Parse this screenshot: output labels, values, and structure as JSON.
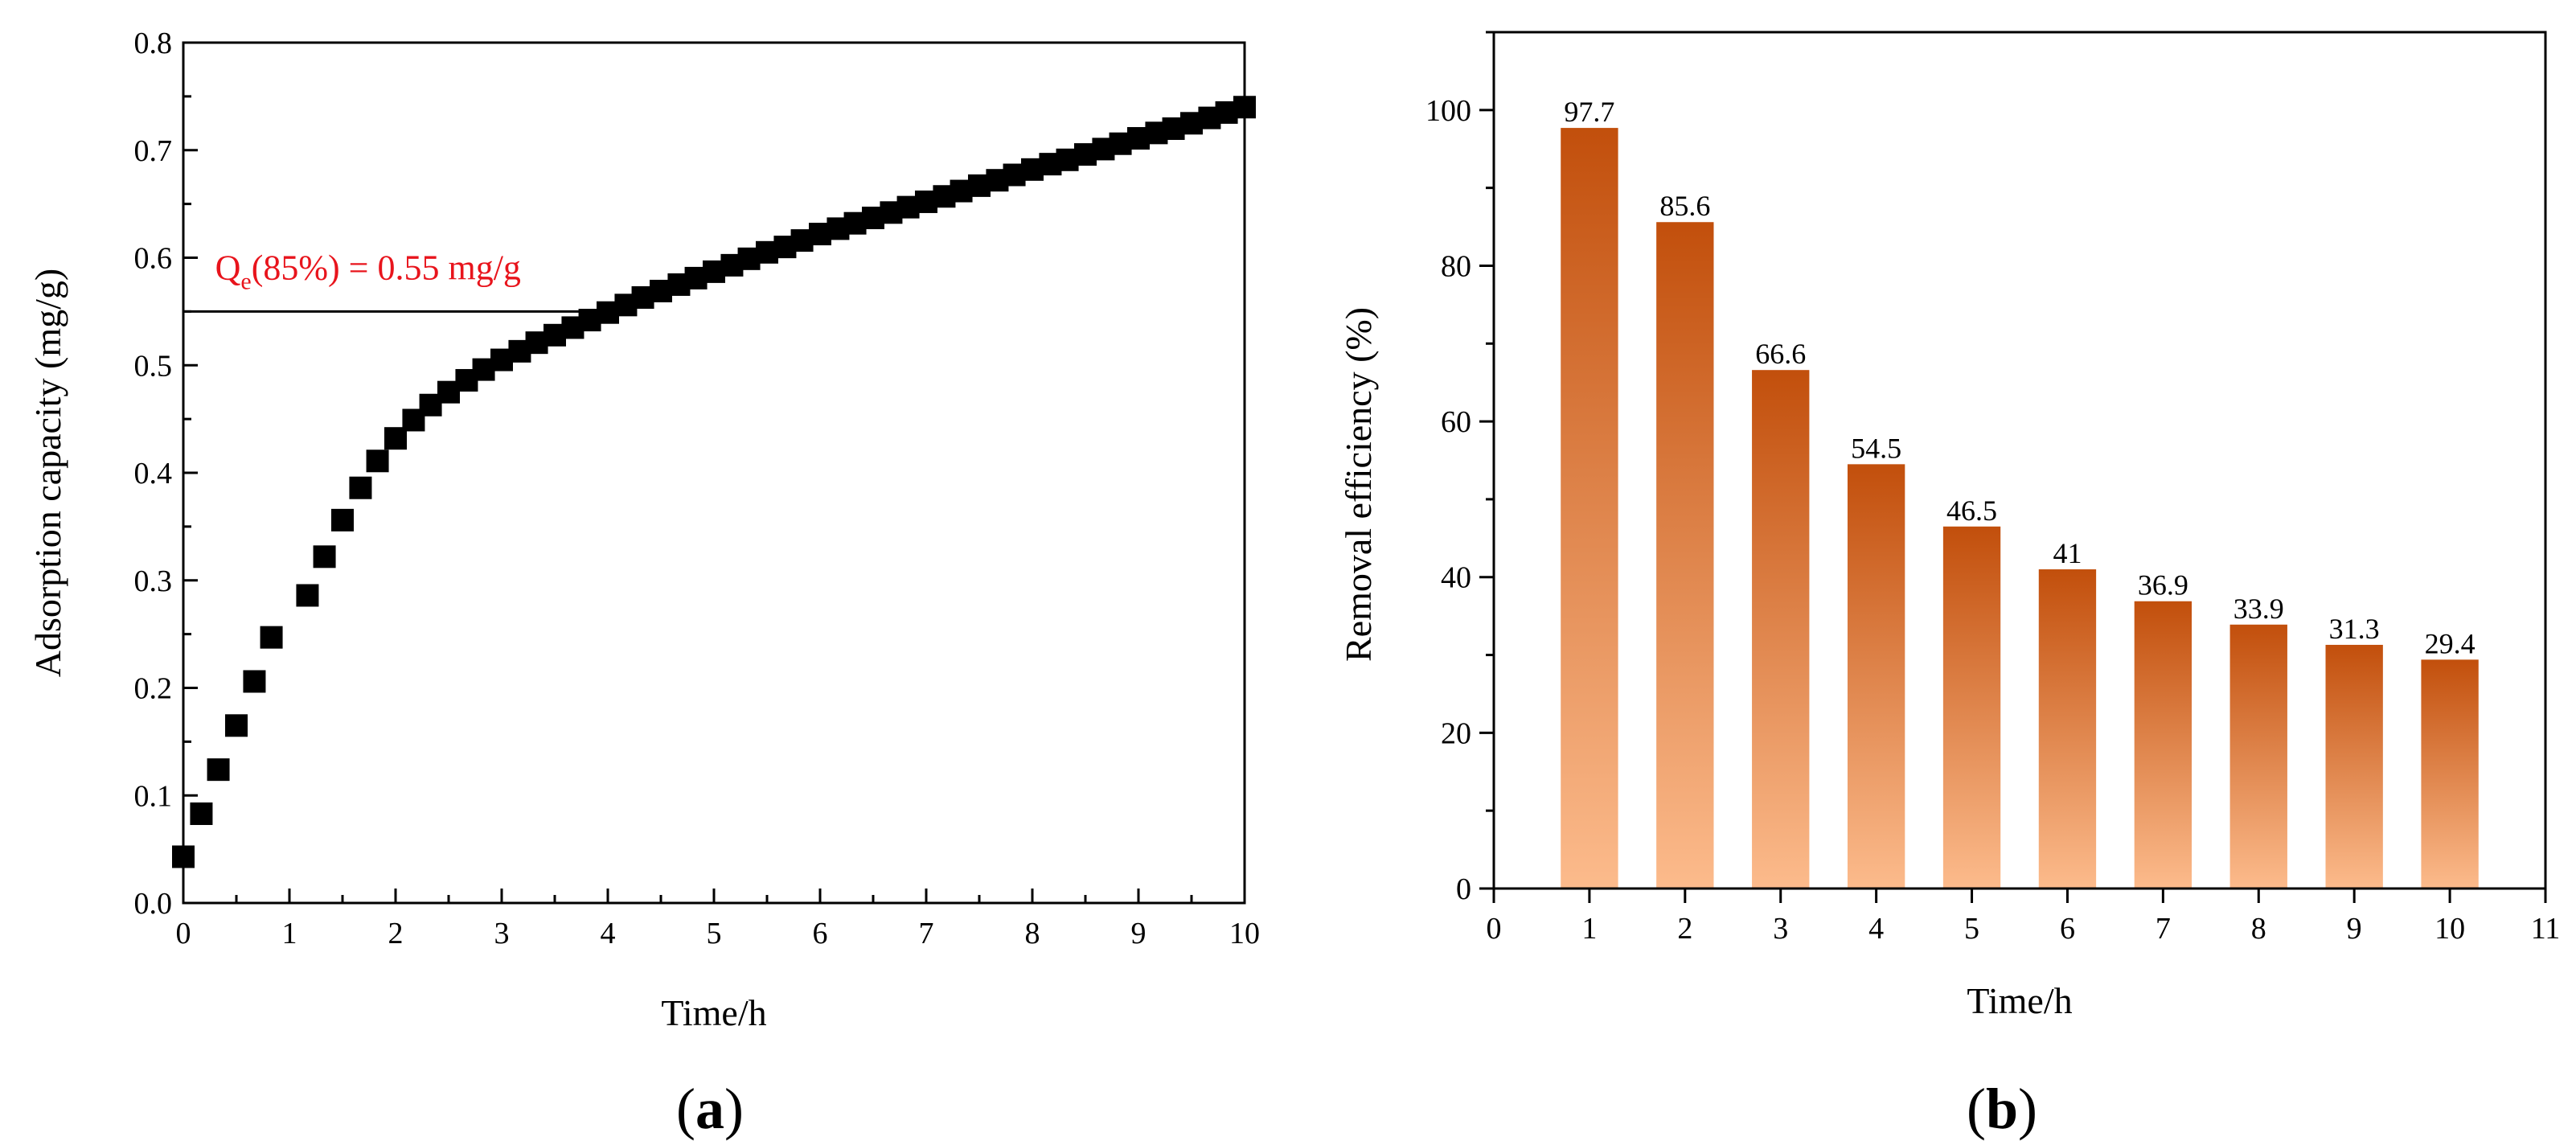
{
  "colors": {
    "axis": "#000000",
    "marker": "#000000",
    "annotation": "#e8141c",
    "bar_top": "#c24f0c",
    "bar_bottom": "#fcbb8c",
    "threshold_line": "#000000"
  },
  "chart_data": [
    {
      "panel": "a",
      "panel_label_open": "(",
      "panel_label_letter": "a",
      "panel_label_close": ")",
      "type": "scatter",
      "xlabel": "Time/h",
      "ylabel": "Adsorption capacity (mg/g)",
      "xlim": [
        0,
        10
      ],
      "ylim": [
        0,
        0.8
      ],
      "xticks": [
        "0",
        "1",
        "2",
        "3",
        "4",
        "5",
        "6",
        "7",
        "8",
        "9",
        "10"
      ],
      "yticks": [
        "0.0",
        "0.1",
        "0.2",
        "0.3",
        "0.4",
        "0.5",
        "0.6",
        "0.7",
        "0.8"
      ],
      "threshold": {
        "y": 0.55,
        "x_start": 0,
        "x_end": 3.9
      },
      "annotation": {
        "prefix": "Q",
        "subscript": "e",
        "suffix": "(85%) = 0.55 mg/g",
        "x": 0.3,
        "y": 0.58
      },
      "series": [
        {
          "name": "Adsorption capacity",
          "marker": "square",
          "x": [
            0.0,
            0.17,
            0.33,
            0.5,
            0.67,
            0.83,
            1.17,
            1.33,
            1.5,
            1.67,
            1.83,
            2.0,
            2.17,
            2.33,
            2.5,
            2.67,
            2.83,
            3.0,
            3.17,
            3.33,
            3.5,
            3.67,
            3.83,
            4.0,
            4.17,
            4.33,
            4.5,
            4.67,
            4.83,
            5.0,
            5.17,
            5.33,
            5.5,
            5.67,
            5.83,
            6.0,
            6.17,
            6.33,
            6.5,
            6.67,
            6.83,
            7.0,
            7.17,
            7.33,
            7.5,
            7.67,
            7.83,
            8.0,
            8.17,
            8.33,
            8.5,
            8.67,
            8.83,
            9.0,
            9.17,
            9.33,
            9.5,
            9.67,
            9.83,
            10.0
          ],
          "y": [
            0.043,
            0.083,
            0.124,
            0.165,
            0.206,
            0.247,
            0.286,
            0.322,
            0.356,
            0.386,
            0.411,
            0.432,
            0.449,
            0.463,
            0.475,
            0.486,
            0.496,
            0.505,
            0.513,
            0.521,
            0.528,
            0.535,
            0.542,
            0.549,
            0.556,
            0.563,
            0.569,
            0.575,
            0.581,
            0.587,
            0.593,
            0.599,
            0.605,
            0.61,
            0.616,
            0.622,
            0.627,
            0.632,
            0.637,
            0.642,
            0.647,
            0.652,
            0.657,
            0.662,
            0.667,
            0.672,
            0.677,
            0.682,
            0.687,
            0.691,
            0.696,
            0.701,
            0.706,
            0.711,
            0.716,
            0.72,
            0.725,
            0.73,
            0.735,
            0.74
          ]
        }
      ]
    },
    {
      "panel": "b",
      "panel_label_open": "(",
      "panel_label_letter": "b",
      "panel_label_close": ")",
      "type": "bar",
      "xlabel": "Time/h",
      "ylabel": "Removal efficiency (%)",
      "xlim": [
        0,
        11
      ],
      "ylim": [
        0,
        110
      ],
      "xticks": [
        "0",
        "1",
        "2",
        "3",
        "4",
        "5",
        "6",
        "7",
        "8",
        "9",
        "10",
        "11"
      ],
      "yticks": [
        "0",
        "20",
        "40",
        "60",
        "80",
        "100"
      ],
      "categories": [
        1,
        2,
        3,
        4,
        5,
        6,
        7,
        8,
        9,
        10
      ],
      "values": [
        97.7,
        85.6,
        66.6,
        54.5,
        46.5,
        41,
        36.9,
        33.9,
        31.3,
        29.4
      ],
      "data_labels": [
        "97.7",
        "85.6",
        "66.6",
        "54.5",
        "46.5",
        "41",
        "36.9",
        "33.9",
        "31.3",
        "29.4"
      ],
      "bar_width": 0.6
    }
  ]
}
